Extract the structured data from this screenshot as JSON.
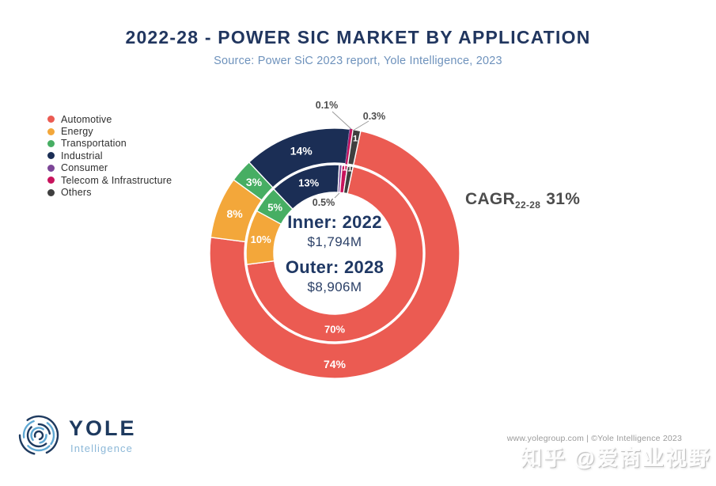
{
  "header": {
    "title": "2022-28 - POWER SIC MARKET BY APPLICATION",
    "subtitle": "Source: Power SiC 2023 report, Yole Intelligence, 2023"
  },
  "cagr": {
    "label": "CAGR",
    "subscript": "22-28",
    "value": "31%"
  },
  "center": {
    "inner_label": "Inner: 2022",
    "inner_value": "$1,794M",
    "outer_label": "Outer: 2028",
    "outer_value": "$8,906M"
  },
  "chart_data": {
    "type": "donut-nested",
    "title": "2022-28 - POWER SIC MARKET BY APPLICATION",
    "source": "Source: Power SiC 2023 report, Yole Intelligence, 2023",
    "categories": [
      "Automotive",
      "Energy",
      "Transportation",
      "Industrial",
      "Consumer",
      "Telecom & Infrastructure",
      "Others"
    ],
    "colors": [
      "#EB5B52",
      "#F3A73A",
      "#47AE63",
      "#1B2E55",
      "#7C4697",
      "#C8135C",
      "#3F3F3F"
    ],
    "rings": [
      {
        "name": "inner",
        "year": "2022",
        "total": "$1,794M",
        "values_pct": [
          70,
          10,
          5,
          13,
          0.5,
          1,
          1
        ],
        "labels": [
          "70%",
          "10%",
          "5%",
          "13%",
          "0.5%",
          "1",
          "1"
        ]
      },
      {
        "name": "outer",
        "year": "2028",
        "total": "$8,906M",
        "values_pct": [
          74,
          8,
          3,
          14,
          0.1,
          0.3,
          1
        ],
        "labels": [
          "74%",
          "8%",
          "3%",
          "14%",
          "0.1%",
          "0.3%",
          "1"
        ]
      }
    ],
    "start_angle_deg": 12,
    "cagr": {
      "period": "22-28",
      "value": "31%"
    },
    "legend_position": "left"
  },
  "footer": {
    "logo_text": "YOLE",
    "logo_subtext": "Intelligence",
    "credit": "www.yolegroup.com | ©Yole Intelligence 2023",
    "watermark": "知乎 @爱商业视野"
  }
}
